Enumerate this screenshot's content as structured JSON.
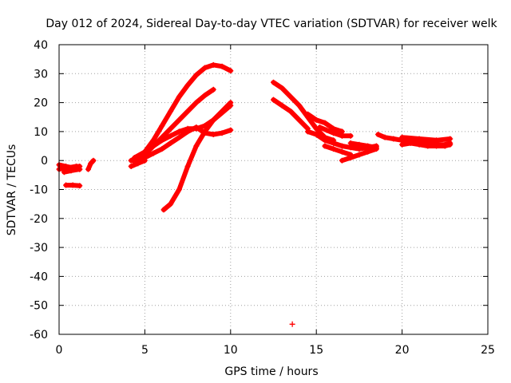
{
  "chart_data": {
    "type": "scatter",
    "title": "Day 012 of 2024, Sidereal Day-to-day VTEC variation (SDTVAR) for receiver welk",
    "xlabel": "GPS time / hours",
    "ylabel": "SDTVAR / TECUs",
    "xlim": [
      0,
      25
    ],
    "ylim": [
      -60,
      40
    ],
    "xticks": [
      0,
      5,
      10,
      15,
      20,
      25
    ],
    "yticks": [
      -60,
      -50,
      -40,
      -30,
      -20,
      -10,
      0,
      10,
      20,
      30,
      40
    ],
    "grid": true,
    "marker": "+",
    "color": "#ff0000",
    "series": [
      {
        "name": "track-early-1",
        "x": [
          0.0,
          0.5,
          1.0,
          1.2
        ],
        "y": [
          -3,
          -2.5,
          -2,
          -2
        ]
      },
      {
        "name": "track-early-2",
        "x": [
          0.0,
          0.4,
          0.8,
          1.2
        ],
        "y": [
          -1.5,
          -2,
          -2.5,
          -3
        ]
      },
      {
        "name": "track-early-3",
        "x": [
          0.3,
          0.7,
          1.2
        ],
        "y": [
          -4,
          -3.5,
          -3
        ]
      },
      {
        "name": "track-early-4",
        "x": [
          0.4,
          0.8,
          1.2
        ],
        "y": [
          -8.5,
          -8.5,
          -8.7
        ]
      },
      {
        "name": "track-early-5",
        "x": [
          1.7,
          1.85,
          2.0
        ],
        "y": [
          -3,
          -1,
          0
        ]
      },
      {
        "name": "track-rise-1",
        "x": [
          4.2,
          4.6,
          5.0,
          5.5,
          6.0,
          6.5,
          7.0,
          7.5,
          8.0,
          8.5,
          9.0,
          9.5,
          10.0
        ],
        "y": [
          0,
          1,
          3,
          7,
          12,
          17,
          22,
          26,
          29.5,
          32,
          33,
          32.5,
          31
        ]
      },
      {
        "name": "track-rise-2",
        "x": [
          4.3,
          5.0,
          5.5,
          6.0,
          6.5,
          7.0,
          7.5,
          8.0,
          8.5,
          9.0
        ],
        "y": [
          0,
          2,
          5,
          8,
          11,
          14,
          17,
          20,
          22.5,
          24.5
        ]
      },
      {
        "name": "track-rise-3",
        "x": [
          4.5,
          5.0,
          5.5,
          6.0,
          6.5,
          7.0,
          7.5,
          8.0,
          8.5,
          9.0,
          9.5,
          10.0
        ],
        "y": [
          0,
          1,
          2.5,
          4,
          6,
          8,
          10,
          11.5,
          9.5,
          9,
          9.5,
          10.5
        ]
      },
      {
        "name": "track-rise-4",
        "x": [
          4.4,
          5.0,
          5.5,
          6.0,
          6.5,
          7.0,
          7.5,
          8.0,
          8.5,
          9.0,
          9.5,
          10.0
        ],
        "y": [
          1,
          3,
          5,
          7,
          8.5,
          10,
          11,
          11,
          12,
          14,
          16.5,
          19
        ]
      },
      {
        "name": "track-rise-5",
        "x": [
          6.1,
          6.5,
          7.0,
          7.5,
          8.0,
          8.5,
          9.0,
          9.5,
          10.0
        ],
        "y": [
          -17,
          -15,
          -10,
          -2,
          5,
          10,
          14,
          17,
          20
        ]
      },
      {
        "name": "track-rise-6",
        "x": [
          4.2,
          4.6,
          5.0
        ],
        "y": [
          -2,
          -1,
          0
        ]
      },
      {
        "name": "track-mid-1",
        "x": [
          12.5,
          13.0,
          13.5,
          14.0,
          14.5,
          15.0,
          15.5,
          16.0
        ],
        "y": [
          27,
          25,
          22,
          19,
          15,
          11,
          8,
          7
        ]
      },
      {
        "name": "track-mid-2",
        "x": [
          12.5,
          13.0,
          13.5,
          14.0,
          14.5
        ],
        "y": [
          21,
          19,
          17,
          14,
          11
        ]
      },
      {
        "name": "track-mid-3",
        "x": [
          14.5,
          15.0,
          15.5,
          16.0,
          16.5,
          17.0,
          17.5,
          18.0,
          18.5
        ],
        "y": [
          10,
          9,
          7,
          6,
          5,
          4.5,
          4,
          4.5,
          5
        ]
      },
      {
        "name": "track-mid-4",
        "x": [
          15.2,
          15.6,
          16.0,
          16.5,
          17.0
        ],
        "y": [
          11.5,
          10.5,
          9.5,
          8.5,
          8.5
        ]
      },
      {
        "name": "track-mid-5",
        "x": [
          14.5,
          15.0,
          15.5,
          16.0,
          16.5
        ],
        "y": [
          16,
          14,
          13,
          11,
          10
        ]
      },
      {
        "name": "track-mid-6",
        "x": [
          16.5,
          17.0,
          17.5,
          18.0,
          18.5
        ],
        "y": [
          0,
          1,
          2,
          3,
          4
        ]
      },
      {
        "name": "track-mid-7",
        "x": [
          15.5,
          16.0,
          16.5,
          17.0
        ],
        "y": [
          5,
          4,
          3,
          2
        ]
      },
      {
        "name": "track-mid-8",
        "x": [
          17.0,
          17.5,
          18.0,
          18.5
        ],
        "y": [
          6,
          5.5,
          5,
          4.5
        ]
      },
      {
        "name": "track-late-1",
        "x": [
          18.6,
          19.0,
          19.5,
          20.0,
          20.5,
          21.0,
          21.5,
          22.0,
          22.5,
          22.8
        ],
        "y": [
          9,
          8,
          7.5,
          7,
          6.5,
          6,
          6,
          5.5,
          5.5,
          6
        ]
      },
      {
        "name": "track-late-2",
        "x": [
          20.0,
          20.5,
          21.0,
          21.5,
          22.0,
          22.5,
          22.8
        ],
        "y": [
          5.5,
          6,
          5.5,
          5,
          5,
          5,
          5.5
        ]
      },
      {
        "name": "track-late-3",
        "x": [
          20.0,
          21.0,
          22.0,
          22.8
        ],
        "y": [
          8,
          7.5,
          7,
          7.5
        ]
      },
      {
        "name": "outlier",
        "x": [
          13.6
        ],
        "y": [
          -56.5
        ]
      }
    ]
  }
}
